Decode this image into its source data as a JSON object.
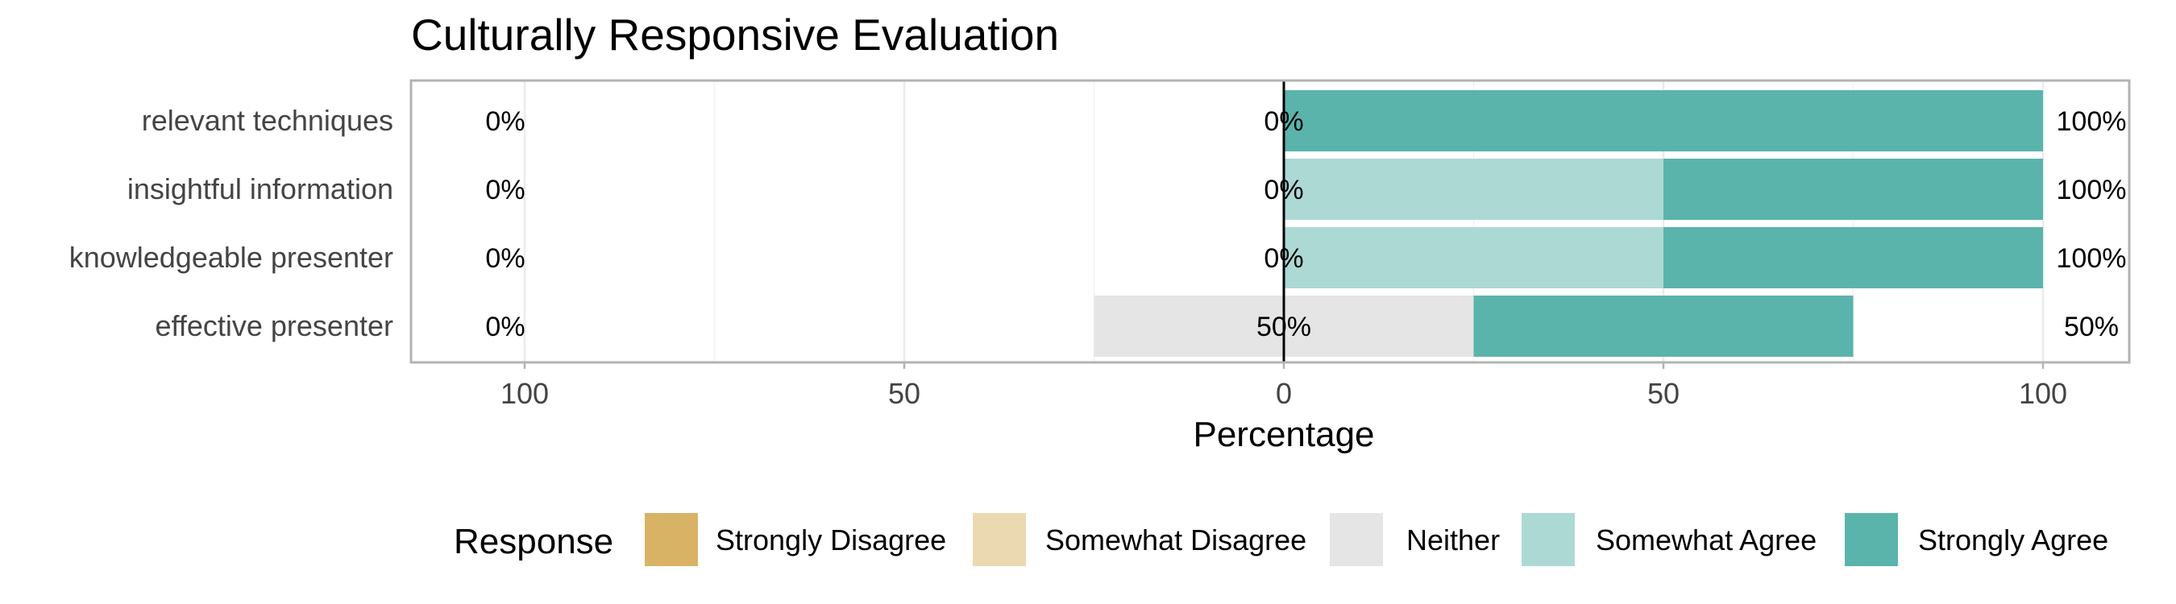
{
  "chart_data": {
    "type": "bar",
    "title": "Culturally Responsive Evaluation",
    "xlabel": "Percentage",
    "ylabel": "",
    "xlim": [
      -100,
      100
    ],
    "x_ticks": [
      -100,
      -50,
      0,
      50,
      100
    ],
    "x_tick_labels": [
      "100",
      "50",
      "0",
      "50",
      "100"
    ],
    "grid": true,
    "legend_position": "bottom",
    "legend_title": "Response",
    "levels": [
      "Strongly Disagree",
      "Somewhat Disagree",
      "Neither",
      "Somewhat Agree",
      "Strongly Agree"
    ],
    "colors": {
      "Strongly Disagree": "#D8B365",
      "Somewhat Disagree": "#EBD9B2",
      "Neither": "#E5E5E5",
      "Somewhat Agree": "#ADD9D5",
      "Strongly Agree": "#5AB4AC"
    },
    "categories": [
      "relevant techniques",
      "insightful information",
      "knowledgeable presenter",
      "effective presenter"
    ],
    "series": [
      {
        "name": "Strongly Disagree",
        "values": [
          0,
          0,
          0,
          0
        ]
      },
      {
        "name": "Somewhat Disagree",
        "values": [
          0,
          0,
          0,
          0
        ]
      },
      {
        "name": "Neither",
        "values": [
          0,
          0,
          0,
          50
        ]
      },
      {
        "name": "Somewhat Agree",
        "values": [
          0,
          50,
          50,
          0
        ]
      },
      {
        "name": "Strongly Agree",
        "values": [
          100,
          50,
          50,
          50
        ]
      }
    ],
    "labels_left": [
      "0%",
      "0%",
      "0%",
      "0%"
    ],
    "labels_center": [
      "0%",
      "0%",
      "0%",
      "50%"
    ],
    "labels_right": [
      "100%",
      "100%",
      "100%",
      "50%"
    ]
  }
}
